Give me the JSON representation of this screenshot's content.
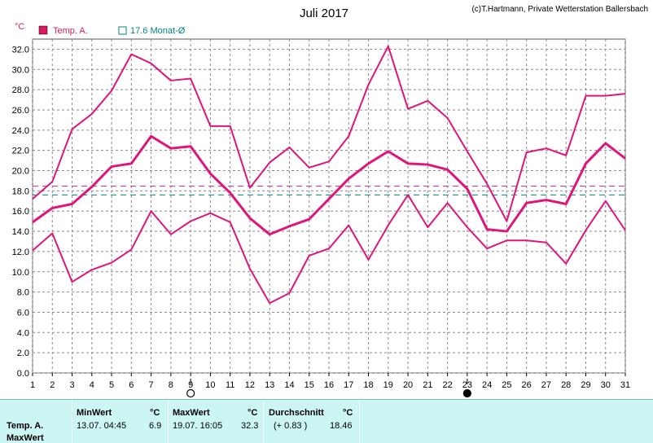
{
  "chart_data": {
    "type": "line",
    "title": "Juli 2017",
    "credit": "(c)T.Hartmann, Private Wetterstation Ballersbach",
    "yunit": "°C",
    "ylim": [
      0,
      33
    ],
    "yticks": [
      "0.0",
      "2.0",
      "4.0",
      "6.0",
      "8.0",
      "10.0",
      "12.0",
      "14.0",
      "16.0",
      "18.0",
      "20.0",
      "22.0",
      "24.0",
      "26.0",
      "28.0",
      "30.0",
      "32.0"
    ],
    "x": [
      1,
      2,
      3,
      4,
      5,
      6,
      7,
      8,
      9,
      10,
      11,
      12,
      13,
      14,
      15,
      16,
      17,
      18,
      19,
      20,
      21,
      22,
      23,
      24,
      25,
      26,
      27,
      28,
      29,
      30,
      31
    ],
    "grid": true,
    "legend": [
      {
        "label": "Temp. A.",
        "color": "#d81b60"
      },
      {
        "label": "17.6 Monat-Ø",
        "color": "#008080"
      }
    ],
    "series": [
      {
        "name": "Temp. A.",
        "kind": "max",
        "color": "#e0157a",
        "values": [
          17.2,
          18.9,
          24.1,
          25.6,
          27.9,
          31.5,
          30.6,
          28.9,
          29.1,
          24.4,
          24.4,
          18.3,
          20.8,
          22.3,
          20.3,
          20.9,
          23.4,
          28.5,
          32.3,
          26.1,
          26.9,
          25.2,
          21.9,
          18.7,
          15.0,
          21.8,
          22.2,
          21.5,
          27.4,
          27.4,
          27.6
        ]
      },
      {
        "name": "Temp. A.",
        "kind": "mean",
        "color": "#e0157a",
        "values": [
          14.9,
          16.3,
          16.7,
          18.4,
          20.4,
          20.7,
          23.4,
          22.2,
          22.4,
          19.7,
          17.8,
          15.3,
          13.7,
          14.5,
          15.2,
          17.2,
          19.2,
          20.7,
          21.9,
          20.7,
          20.6,
          20.1,
          18.2,
          14.2,
          14.0,
          16.8,
          17.1,
          16.7,
          20.7,
          22.7,
          21.2
        ]
      },
      {
        "name": "Temp. A.",
        "kind": "min",
        "color": "#e0157a",
        "values": [
          12.1,
          13.8,
          9.0,
          10.2,
          10.9,
          12.2,
          16.0,
          13.7,
          15.0,
          15.8,
          14.9,
          10.3,
          6.9,
          7.9,
          11.6,
          12.3,
          14.6,
          11.2,
          14.6,
          17.6,
          14.4,
          16.8,
          14.4,
          12.3,
          13.1,
          13.1,
          12.9,
          10.8,
          14.1,
          17.0,
          14.1
        ]
      }
    ],
    "reference_lines": [
      {
        "value": 18.46,
        "color": "#b0308a",
        "dash": true
      },
      {
        "value": 17.6,
        "color": "#008080",
        "dash": true
      }
    ],
    "moon_markers": [
      {
        "day": 9,
        "phase": "full"
      },
      {
        "day": 23,
        "phase": "new"
      }
    ]
  },
  "stats": {
    "row_label": "Temp. A.",
    "row_label_2": "MaxWert",
    "min_header": "MinWert",
    "min_unit": "°C",
    "min_time": "13.07.  04:45",
    "min_value": "6.9",
    "max_header": "MaxWert",
    "max_unit": "°C",
    "max_time": "19.07.  16:05",
    "max_value": "32.3",
    "avg_header": "Durchschnitt",
    "avg_unit": "°C",
    "avg_delta": "(+ 0.83 )",
    "avg_value": "18.46"
  }
}
